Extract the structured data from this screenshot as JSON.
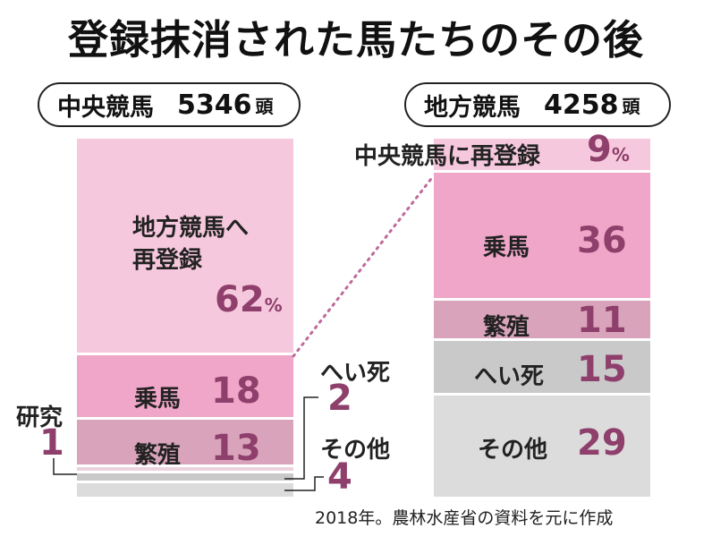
{
  "title": "登録抹消された馬たちのその後",
  "source": "2018年。農林水産省の資料を元に作成",
  "colors": {
    "pink_light": "#f6c8dd",
    "pink_mid": "#f0a6c8",
    "mauve": "#d9a4bb",
    "gray": "#c9c9c9",
    "gray_light": "#dcdcdc",
    "value_text": "#8e3f6b"
  },
  "central": {
    "label": "中央競馬",
    "count": "5346",
    "unit": "頭"
  },
  "local": {
    "label": "地方競馬",
    "count": "4258",
    "unit": "頭"
  },
  "chart_data": [
    {
      "type": "bar",
      "stacked": true,
      "title": "中央競馬",
      "total": 5346,
      "unit": "%",
      "categories": [
        "地方競馬へ再登録",
        "乗馬",
        "繁殖",
        "研究",
        "へい死",
        "その他"
      ],
      "values": [
        62,
        18,
        13,
        1,
        2,
        4
      ]
    },
    {
      "type": "bar",
      "stacked": true,
      "title": "地方競馬",
      "total": 4258,
      "unit": "%",
      "categories": [
        "中央競馬に再登録",
        "乗馬",
        "繁殖",
        "へい死",
        "その他"
      ],
      "values": [
        9,
        36,
        11,
        15,
        29
      ]
    }
  ],
  "labels": {
    "left": {
      "reregister_line1": "地方競馬へ",
      "reregister_line2": "再登録",
      "reregister_value": "62",
      "pct": "%",
      "riding": "乗馬",
      "riding_value": "18",
      "breeding": "繁殖",
      "breeding_value": "13",
      "research": "研究",
      "research_value": "1",
      "death": "へい死",
      "death_value": "2",
      "other": "その他",
      "other_value": "4"
    },
    "right": {
      "reregister": "中央競馬に再登録",
      "reregister_value": "9",
      "pct": "%",
      "riding": "乗馬",
      "riding_value": "36",
      "breeding": "繁殖",
      "breeding_value": "11",
      "death": "へい死",
      "death_value": "15",
      "other": "その他",
      "other_value": "29"
    }
  }
}
